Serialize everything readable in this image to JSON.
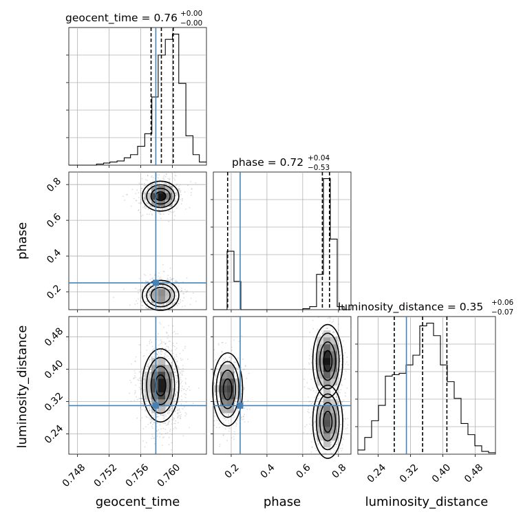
{
  "chart_data": {
    "type": "corner",
    "parameters": [
      "geocent_time",
      "phase",
      "luminosity_distance"
    ],
    "truths": {
      "geocent_time": 0.7579,
      "phase": 0.25,
      "luminosity_distance": 0.31
    },
    "titles": [
      {
        "param": "geocent_time",
        "prefix": "geocent_time = ",
        "median": "0.76",
        "plus": "+0.00",
        "minus": "−0.00"
      },
      {
        "param": "phase",
        "prefix": "phase = ",
        "median": "0.72",
        "plus": "+0.04",
        "minus": "−0.53"
      },
      {
        "param": "luminosity_distance",
        "prefix": "luminosity_distance = ",
        "median": "0.35",
        "plus": "+0.06",
        "minus": "−0.07"
      }
    ],
    "axes": {
      "geocent_time": {
        "range": [
          0.7469,
          0.7643
        ],
        "ticks": [
          0.748,
          0.752,
          0.756,
          0.76
        ],
        "tick_labels": [
          "0.748",
          "0.752",
          "0.756",
          "0.760"
        ]
      },
      "phase": {
        "range": [
          0.1,
          0.87
        ],
        "ticks": [
          0.2,
          0.4,
          0.6,
          0.8
        ],
        "tick_labels": [
          "0.2",
          "0.4",
          "0.6",
          "0.8"
        ]
      },
      "luminosity_distance": {
        "range": [
          0.19,
          0.53
        ],
        "ticks": [
          0.24,
          0.32,
          0.4,
          0.48
        ],
        "tick_labels": [
          "0.24",
          "0.32",
          "0.40",
          "0.48"
        ]
      }
    },
    "xlabels": [
      "geocent_time",
      "phase",
      "luminosity_distance"
    ],
    "ylabels": [
      "phase",
      "luminosity_distance"
    ],
    "quantile_lines": {
      "geocent_time": [
        0.7573,
        0.7586,
        0.7601
      ],
      "phase": [
        0.18,
        0.71,
        0.75
      ],
      "luminosity_distance": [
        0.28,
        0.35,
        0.41
      ]
    },
    "hist": {
      "geocent_time": {
        "edges": [
          0.7469,
          0.7478,
          0.7487,
          0.7495,
          0.7504,
          0.7513,
          0.7521,
          0.753,
          0.7539,
          0.7547,
          0.7556,
          0.7565,
          0.7574,
          0.7582,
          0.7591,
          0.76,
          0.7608,
          0.7617,
          0.7626,
          0.7634,
          0.7643
        ],
        "counts": [
          0,
          0,
          0,
          0,
          1,
          2,
          3,
          4,
          7,
          10,
          18,
          30,
          65,
          105,
          120,
          125,
          78,
          28,
          10,
          3
        ]
      },
      "phase": {
        "edges": [
          0.1,
          0.1385,
          0.177,
          0.2155,
          0.254,
          0.2925,
          0.331,
          0.3695,
          0.408,
          0.4465,
          0.485,
          0.5235,
          0.562,
          0.6005,
          0.639,
          0.6775,
          0.716,
          0.7545,
          0.793,
          0.8315,
          0.87
        ],
        "counts": [
          0,
          0,
          58,
          28,
          0,
          0,
          0,
          0,
          0,
          0,
          0,
          0,
          0,
          1,
          3,
          35,
          130,
          70,
          3,
          0
        ]
      },
      "luminosity_distance": {
        "edges": [
          0.19,
          0.207,
          0.224,
          0.241,
          0.258,
          0.275,
          0.292,
          0.309,
          0.326,
          0.343,
          0.36,
          0.377,
          0.394,
          0.411,
          0.428,
          0.445,
          0.462,
          0.479,
          0.496,
          0.513,
          0.53
        ],
        "counts": [
          3,
          12,
          24,
          35,
          56,
          57,
          58,
          64,
          71,
          92,
          94,
          85,
          64,
          52,
          40,
          22,
          14,
          6,
          2,
          1
        ]
      }
    },
    "density_modes": [
      {
        "x": "geocent_time",
        "y": "phase",
        "peaks": [
          [
            0.7585,
            0.735,
            1.0
          ],
          [
            0.7585,
            0.18,
            0.55
          ]
        ]
      },
      {
        "x": "geocent_time",
        "y": "luminosity_distance",
        "peaks": [
          [
            0.7585,
            0.36,
            1.0
          ]
        ]
      },
      {
        "x": "phase",
        "y": "luminosity_distance",
        "peaks": [
          [
            0.18,
            0.35,
            0.9
          ],
          [
            0.74,
            0.42,
            1.0
          ],
          [
            0.74,
            0.27,
            0.75
          ]
        ]
      }
    ]
  }
}
